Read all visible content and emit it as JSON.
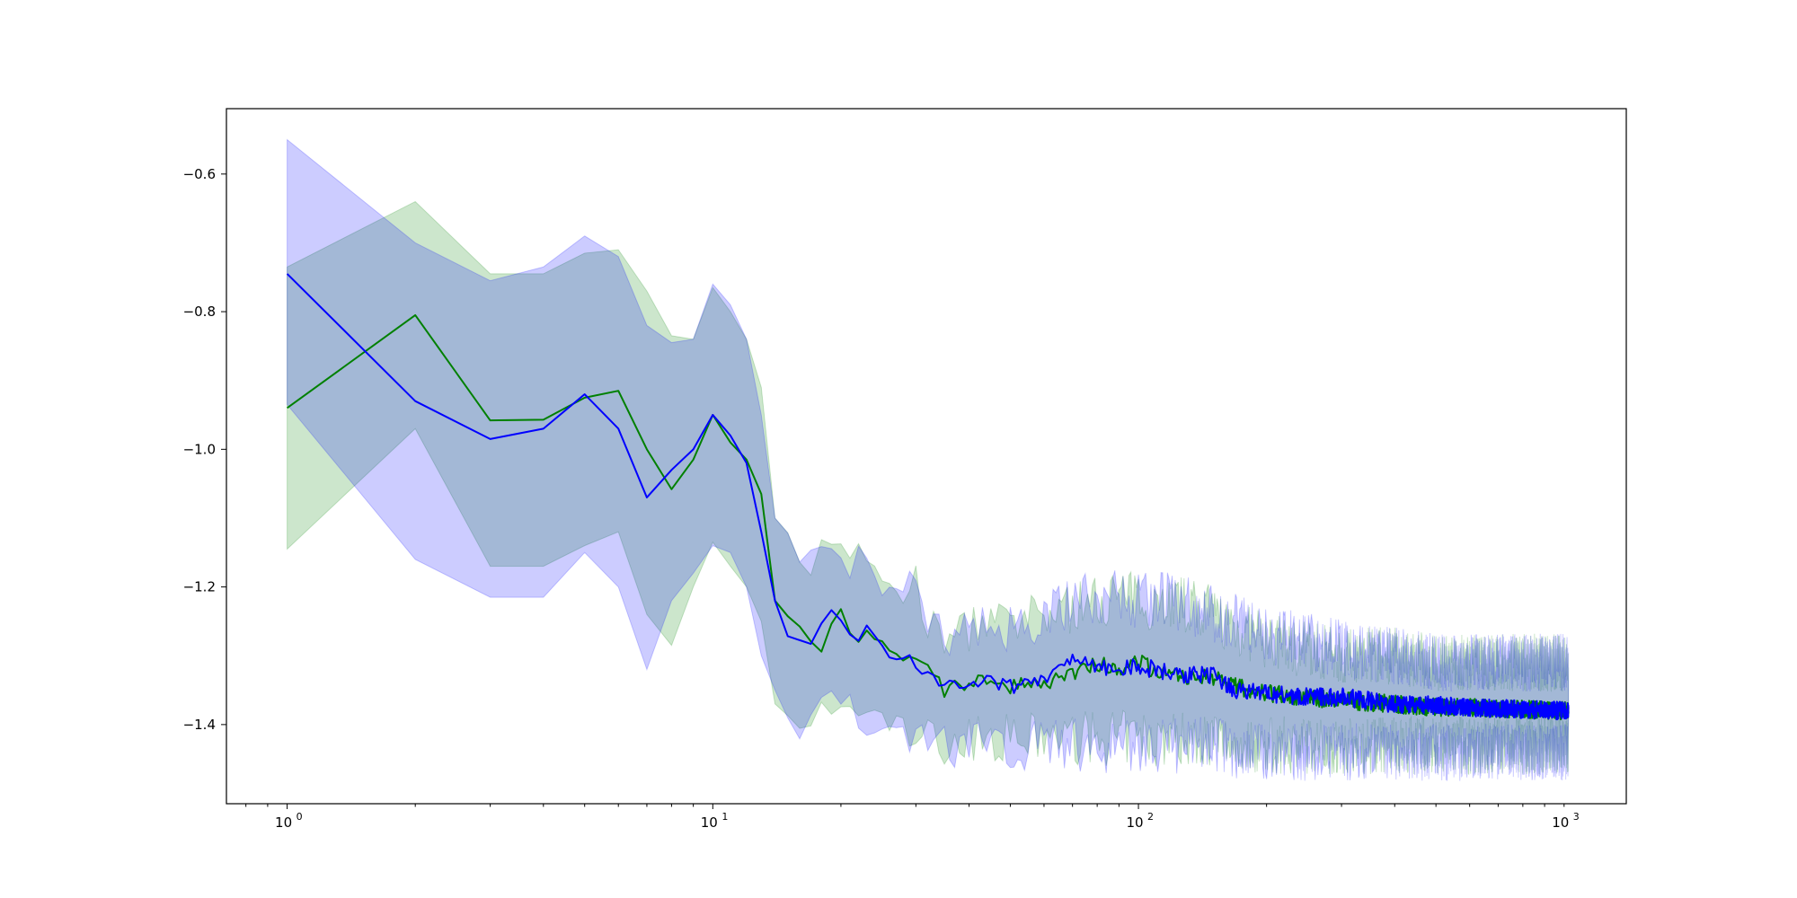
{
  "chart_data": {
    "type": "line",
    "title": "",
    "xlabel": "",
    "ylabel": "",
    "xscale": "log",
    "xlim": [
      0.72,
      1400
    ],
    "ylim": [
      -1.515,
      -0.505
    ],
    "grid": false,
    "legend": "none",
    "x_ticks": [
      {
        "value": 1,
        "label": "10",
        "exp": "0"
      },
      {
        "value": 10,
        "label": "10",
        "exp": "1"
      },
      {
        "value": 100,
        "label": "10",
        "exp": "2"
      },
      {
        "value": 1000,
        "label": "10",
        "exp": "3"
      }
    ],
    "y_ticks": [
      {
        "value": -0.6,
        "label": "−0.6"
      },
      {
        "value": -0.8,
        "label": "−0.8"
      },
      {
        "value": -1.0,
        "label": "−1.0"
      },
      {
        "value": -1.2,
        "label": "−1.2"
      },
      {
        "value": -1.4,
        "label": "−1.4"
      }
    ],
    "series": [
      {
        "color": "#008000",
        "band_color": "#008000",
        "band_opacity": 0.2,
        "x": [
          1,
          2,
          3,
          4,
          5,
          6,
          7,
          8,
          9,
          10,
          11,
          12,
          13,
          14,
          15,
          16,
          17,
          18,
          19,
          20,
          21,
          22,
          23,
          24,
          26,
          28,
          30,
          32,
          35,
          40,
          45,
          50,
          55,
          60,
          70,
          80,
          90,
          100,
          120,
          150,
          170,
          200,
          250,
          300,
          400,
          500,
          600,
          800,
          1000,
          1024
        ],
        "y": [
          -0.94,
          -0.805,
          -0.958,
          -0.957,
          -0.925,
          -0.915,
          -1.0,
          -1.058,
          -1.015,
          -0.95,
          -0.99,
          -1.015,
          -1.065,
          -1.22,
          -1.25,
          -1.255,
          -1.28,
          -1.29,
          -1.25,
          -1.235,
          -1.265,
          -1.275,
          -1.27,
          -1.275,
          -1.3,
          -1.31,
          -1.3,
          -1.32,
          -1.35,
          -1.34,
          -1.33,
          -1.345,
          -1.335,
          -1.34,
          -1.33,
          -1.31,
          -1.32,
          -1.31,
          -1.33,
          -1.33,
          -1.345,
          -1.355,
          -1.36,
          -1.365,
          -1.37,
          -1.375,
          -1.375,
          -1.378,
          -1.38,
          -1.38
        ],
        "upper": [
          -0.735,
          -0.64,
          -0.745,
          -0.745,
          -0.715,
          -0.71,
          -0.77,
          -0.835,
          -0.84,
          -0.765,
          -0.8,
          -0.84,
          -0.91,
          -1.1,
          -1.11,
          -1.16,
          -1.16,
          -1.14,
          -1.12,
          -1.13,
          -1.16,
          -1.16,
          -1.17,
          -1.17,
          -1.2,
          -1.2,
          -1.2,
          -1.25,
          -1.28,
          -1.26,
          -1.25,
          -1.26,
          -1.25,
          -1.24,
          -1.23,
          -1.22,
          -1.21,
          -1.22,
          -1.22,
          -1.24,
          -1.26,
          -1.28,
          -1.29,
          -1.3,
          -1.3,
          -1.31,
          -1.31,
          -1.31,
          -1.31,
          -1.31
        ],
        "lower": [
          -1.145,
          -0.97,
          -1.17,
          -1.17,
          -1.14,
          -1.12,
          -1.24,
          -1.285,
          -1.2,
          -1.135,
          -1.17,
          -1.2,
          -1.25,
          -1.37,
          -1.39,
          -1.39,
          -1.395,
          -1.39,
          -1.38,
          -1.37,
          -1.38,
          -1.385,
          -1.39,
          -1.39,
          -1.4,
          -1.41,
          -1.41,
          -1.42,
          -1.43,
          -1.42,
          -1.42,
          -1.42,
          -1.42,
          -1.42,
          -1.42,
          -1.42,
          -1.42,
          -1.42,
          -1.42,
          -1.42,
          -1.43,
          -1.43,
          -1.43,
          -1.43,
          -1.43,
          -1.43,
          -1.43,
          -1.43,
          -1.43,
          -1.43
        ]
      },
      {
        "color": "#0000ff",
        "band_color": "#0000ff",
        "band_opacity": 0.2,
        "x": [
          1,
          2,
          3,
          4,
          5,
          6,
          7,
          8,
          9,
          10,
          11,
          12,
          13,
          14,
          15,
          16,
          17,
          18,
          19,
          20,
          21,
          22,
          23,
          24,
          26,
          28,
          30,
          32,
          35,
          40,
          45,
          50,
          55,
          60,
          70,
          80,
          90,
          100,
          120,
          150,
          170,
          200,
          250,
          300,
          400,
          500,
          600,
          800,
          1000,
          1024
        ],
        "y": [
          -0.745,
          -0.93,
          -0.985,
          -0.97,
          -0.92,
          -0.97,
          -1.07,
          -1.03,
          -1.0,
          -0.95,
          -0.98,
          -1.02,
          -1.12,
          -1.22,
          -1.275,
          -1.27,
          -1.285,
          -1.26,
          -1.235,
          -1.255,
          -1.275,
          -1.27,
          -1.26,
          -1.265,
          -1.295,
          -1.3,
          -1.31,
          -1.33,
          -1.345,
          -1.34,
          -1.335,
          -1.345,
          -1.34,
          -1.335,
          -1.31,
          -1.315,
          -1.32,
          -1.315,
          -1.325,
          -1.33,
          -1.35,
          -1.355,
          -1.36,
          -1.36,
          -1.37,
          -1.372,
          -1.375,
          -1.378,
          -1.38,
          -1.38
        ],
        "upper": [
          -0.55,
          -0.7,
          -0.755,
          -0.735,
          -0.69,
          -0.72,
          -0.82,
          -0.845,
          -0.84,
          -0.76,
          -0.79,
          -0.84,
          -0.95,
          -1.1,
          -1.12,
          -1.14,
          -1.16,
          -1.14,
          -1.12,
          -1.14,
          -1.16,
          -1.16,
          -1.16,
          -1.17,
          -1.2,
          -1.2,
          -1.21,
          -1.24,
          -1.27,
          -1.26,
          -1.25,
          -1.26,
          -1.25,
          -1.24,
          -1.22,
          -1.22,
          -1.21,
          -1.22,
          -1.22,
          -1.24,
          -1.25,
          -1.27,
          -1.28,
          -1.29,
          -1.3,
          -1.31,
          -1.31,
          -1.31,
          -1.31,
          -1.31
        ],
        "lower": [
          -0.935,
          -1.16,
          -1.215,
          -1.215,
          -1.15,
          -1.2,
          -1.32,
          -1.22,
          -1.18,
          -1.14,
          -1.15,
          -1.2,
          -1.3,
          -1.35,
          -1.4,
          -1.41,
          -1.4,
          -1.38,
          -1.36,
          -1.37,
          -1.38,
          -1.39,
          -1.39,
          -1.39,
          -1.4,
          -1.41,
          -1.41,
          -1.42,
          -1.43,
          -1.43,
          -1.43,
          -1.43,
          -1.43,
          -1.43,
          -1.43,
          -1.43,
          -1.43,
          -1.43,
          -1.43,
          -1.43,
          -1.44,
          -1.44,
          -1.44,
          -1.44,
          -1.44,
          -1.44,
          -1.44,
          -1.44,
          -1.44,
          -1.44
        ]
      }
    ]
  }
}
